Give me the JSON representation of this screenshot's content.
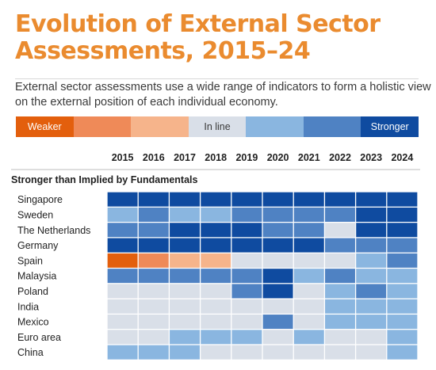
{
  "title": "Evolution of External Sector Assessments, 2015–24",
  "subtitle": "External sector assessments use a wide range of indicators to form a holistic view on the external position of each individual economy.",
  "legend": [
    {
      "label": "Weaker",
      "color": "#e35f0d",
      "dark_text": false
    },
    {
      "label": "",
      "color": "#ef8a58",
      "dark_text": false
    },
    {
      "label": "",
      "color": "#f6b48b",
      "dark_text": false
    },
    {
      "label": "In line",
      "color": "#d9dfe8",
      "dark_text": true
    },
    {
      "label": "",
      "color": "#8ab6e0",
      "dark_text": false
    },
    {
      "label": "",
      "color": "#4f82c3",
      "dark_text": false
    },
    {
      "label": "Stronger",
      "color": "#0f4ba0",
      "dark_text": false
    }
  ],
  "chart_data": {
    "type": "heatmap",
    "section_label": "Stronger than Implied by Fundamentals",
    "years": [
      "2015",
      "2016",
      "2017",
      "2018",
      "2019",
      "2020",
      "2021",
      "2022",
      "2023",
      "2024"
    ],
    "scale": {
      "min": -3,
      "max": 3,
      "zero_label": "In line"
    },
    "rows": [
      {
        "name": "Singapore",
        "values": [
          3,
          3,
          3,
          3,
          3,
          3,
          3,
          3,
          3,
          3
        ]
      },
      {
        "name": "Sweden",
        "values": [
          1,
          2,
          1,
          1,
          2,
          2,
          2,
          2,
          3,
          3
        ]
      },
      {
        "name": "The Netherlands",
        "values": [
          2,
          2,
          3,
          3,
          3,
          2,
          2,
          0,
          3,
          3
        ]
      },
      {
        "name": "Germany",
        "values": [
          3,
          3,
          3,
          3,
          3,
          3,
          3,
          2,
          2,
          2
        ]
      },
      {
        "name": "Spain",
        "values": [
          -3,
          -2,
          -1,
          -1,
          0,
          0,
          0,
          0,
          1,
          2
        ]
      },
      {
        "name": "Malaysia",
        "values": [
          2,
          2,
          2,
          2,
          2,
          3,
          1,
          2,
          1,
          1
        ]
      },
      {
        "name": "Poland",
        "values": [
          0,
          0,
          0,
          0,
          2,
          3,
          0,
          1,
          2,
          1
        ]
      },
      {
        "name": "India",
        "values": [
          0,
          0,
          0,
          0,
          0,
          0,
          0,
          1,
          1,
          1
        ]
      },
      {
        "name": "Mexico",
        "values": [
          0,
          0,
          0,
          0,
          0,
          2,
          0,
          1,
          1,
          1
        ]
      },
      {
        "name": "Euro area",
        "values": [
          0,
          0,
          1,
          1,
          1,
          0,
          1,
          0,
          0,
          1
        ]
      },
      {
        "name": "China",
        "values": [
          1,
          1,
          1,
          0,
          0,
          0,
          0,
          0,
          0,
          1
        ]
      }
    ]
  }
}
